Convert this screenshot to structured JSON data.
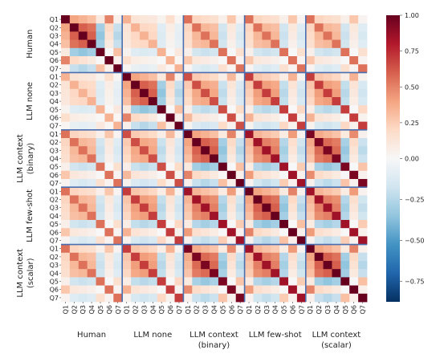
{
  "chart_data": {
    "type": "heatmap",
    "title": "",
    "groups": [
      {
        "label": [
          "Human"
        ]
      },
      {
        "label": [
          "LLM none"
        ]
      },
      {
        "label": [
          "LLM context",
          "(binary)"
        ]
      },
      {
        "label": [
          "LLM few-shot"
        ]
      },
      {
        "label": [
          "LLM context",
          "(scalar)"
        ]
      }
    ],
    "items": [
      "Q1",
      "Q2",
      "Q3",
      "Q4",
      "Q5",
      "Q6",
      "Q7"
    ],
    "colorbar": {
      "vmin": -0.875,
      "vmax": 1.0,
      "ticks": [
        1.0,
        0.75,
        0.5,
        0.25,
        0.0,
        -0.25,
        -0.5,
        -0.75
      ],
      "tick_labels": [
        "1.00",
        "0.75",
        "0.50",
        "0.25",
        "0.00",
        "−0.25",
        "−0.50",
        "−0.75"
      ],
      "colormap": "RdBu_r"
    },
    "group_separator_color": "#4a6fb0",
    "item_correlation": [
      [
        1.0,
        0.4,
        0.35,
        0.3,
        0.1,
        0.5,
        0.05
      ],
      [
        0.4,
        1.0,
        0.6,
        0.55,
        -0.3,
        0.2,
        -0.2
      ],
      [
        0.35,
        0.6,
        1.0,
        0.6,
        -0.35,
        0.15,
        -0.25
      ],
      [
        0.3,
        0.55,
        0.6,
        1.0,
        -0.3,
        0.1,
        -0.2
      ],
      [
        0.1,
        -0.3,
        -0.35,
        -0.3,
        1.0,
        0.0,
        0.3
      ],
      [
        0.5,
        0.2,
        0.15,
        0.1,
        0.0,
        1.0,
        0.05
      ],
      [
        0.05,
        -0.2,
        -0.25,
        -0.2,
        0.3,
        0.05,
        1.0
      ]
    ],
    "group_similarity": [
      [
        1.0,
        0.35,
        0.55,
        0.55,
        0.55
      ],
      [
        0.35,
        1.0,
        0.65,
        0.7,
        0.7
      ],
      [
        0.55,
        0.65,
        1.0,
        0.85,
        0.95
      ],
      [
        0.55,
        0.7,
        0.85,
        1.0,
        0.85
      ],
      [
        0.55,
        0.7,
        0.95,
        0.85,
        1.0
      ]
    ]
  }
}
